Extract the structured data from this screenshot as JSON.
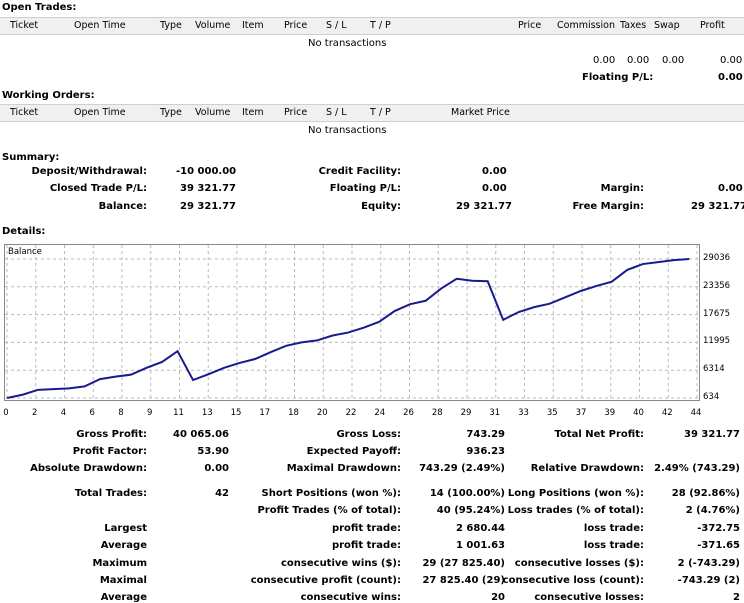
{
  "open_trades": {
    "title": "Open Trades:",
    "columns": [
      "Ticket",
      "Open Time",
      "Type",
      "Volume",
      "Item",
      "Price",
      "S / L",
      "T / P",
      "Price",
      "Commission",
      "Taxes",
      "Swap",
      "Profit"
    ],
    "empty_text": "No transactions",
    "totals": {
      "commission": "0.00",
      "taxes": "0.00",
      "swap": "0.00",
      "profit": "0.00"
    },
    "floating_label": "Floating P/L:",
    "floating_value": "0.00"
  },
  "working_orders": {
    "title": "Working Orders:",
    "columns": [
      "Ticket",
      "Open Time",
      "Type",
      "Volume",
      "Item",
      "Price",
      "S / L",
      "T / P",
      "Market Price"
    ],
    "empty_text": "No transactions"
  },
  "summary": {
    "title": "Summary:",
    "deposit_label": "Deposit/Withdrawal:",
    "deposit_value": "-10 000.00",
    "credit_label": "Credit Facility:",
    "credit_value": "0.00",
    "closed_label": "Closed Trade P/L:",
    "closed_value": "39 321.77",
    "floating_label": "Floating P/L:",
    "floating_value": "0.00",
    "margin_label": "Margin:",
    "margin_value": "0.00",
    "balance_label": "Balance:",
    "balance_value": "29 321.77",
    "equity_label": "Equity:",
    "equity_value": "29 321.77",
    "free_margin_label": "Free Margin:",
    "free_margin_value": "29 321.77"
  },
  "details": {
    "title": "Details:",
    "rows": [
      [
        "Gross Profit:",
        "40 065.06",
        "Gross Loss:",
        "743.29",
        "Total Net Profit:",
        "39 321.77"
      ],
      [
        "Profit Factor:",
        "53.90",
        "Expected Payoff:",
        "936.23",
        "",
        ""
      ],
      [
        "Absolute Drawdown:",
        "0.00",
        "Maximal Drawdown:",
        "743.29 (2.49%)",
        "Relative Drawdown:",
        "2.49% (743.29)"
      ]
    ],
    "rows2": [
      [
        "Total Trades:",
        "42",
        "Short Positions (won %):",
        "14 (100.00%)",
        "Long Positions (won %):",
        "28 (92.86%)"
      ],
      [
        "",
        "",
        "Profit Trades (% of total):",
        "40 (95.24%)",
        "Loss trades (% of total):",
        "2 (4.76%)"
      ],
      [
        "Largest",
        "",
        "profit trade:",
        "2 680.44",
        "loss trade:",
        "-372.75"
      ],
      [
        "Average",
        "",
        "profit trade:",
        "1 001.63",
        "loss trade:",
        "-371.65"
      ],
      [
        "Maximum",
        "",
        "consecutive wins ($):",
        "29 (27 825.40)",
        "consecutive losses ($):",
        "2 (-743.29)"
      ],
      [
        "Maximal",
        "",
        "consecutive profit (count):",
        "27 825.40 (29)",
        "consecutive loss (count):",
        "-743.29 (2)"
      ],
      [
        "Average",
        "",
        "consecutive wins:",
        "20",
        "consecutive losses:",
        "2"
      ]
    ]
  },
  "chart_data": {
    "type": "line",
    "legend": "Balance",
    "line_color": "#1a1a8c",
    "x_ticks": [
      "0",
      "2",
      "4",
      "6",
      "8",
      "9",
      "11",
      "13",
      "15",
      "17",
      "18",
      "20",
      "22",
      "24",
      "26",
      "28",
      "29",
      "31",
      "33",
      "35",
      "37",
      "39",
      "40",
      "42",
      "44"
    ],
    "y_ticks": [
      "29036",
      "23356",
      "17675",
      "11995",
      "6314",
      "634"
    ],
    "ylim": [
      634,
      29036
    ],
    "xlim": [
      0,
      44.5
    ],
    "x": [
      0,
      1,
      2,
      3,
      4,
      5,
      6,
      7,
      8,
      9,
      10,
      11,
      12,
      13,
      14,
      15,
      16,
      17,
      18,
      19,
      20,
      21,
      22,
      23,
      24,
      25,
      26,
      27,
      28,
      29,
      30,
      31,
      32,
      33,
      34,
      35,
      36,
      37,
      38,
      39,
      40,
      41,
      42,
      43,
      44
    ],
    "values": [
      634,
      1300,
      2300,
      2450,
      2600,
      3000,
      4500,
      5000,
      5400,
      6800,
      8000,
      10200,
      4300,
      5500,
      6800,
      7800,
      8600,
      10000,
      11300,
      12000,
      12400,
      13400,
      14000,
      15000,
      16200,
      18400,
      19800,
      20500,
      23000,
      25000,
      24600,
      24500,
      16600,
      18200,
      19200,
      19900,
      21200,
      22500,
      23500,
      24400,
      26800,
      28000,
      28400,
      28800,
      29036
    ],
    "grid": true
  }
}
